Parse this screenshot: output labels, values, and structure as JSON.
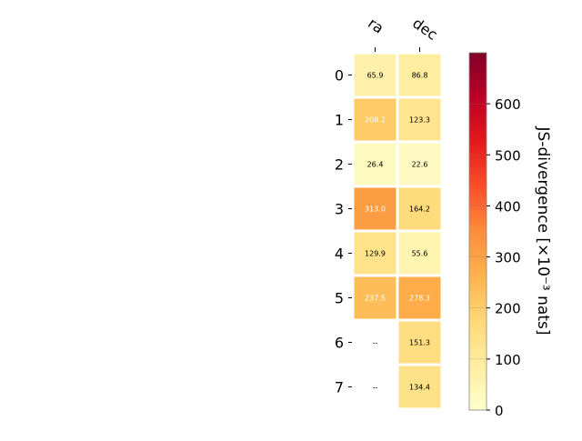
{
  "chart_data": {
    "type": "heatmap",
    "columns": [
      "ra",
      "dec"
    ],
    "rows": [
      "0",
      "1",
      "2",
      "3",
      "4",
      "5",
      "6",
      "7"
    ],
    "values": [
      [
        65.9,
        86.8
      ],
      [
        208.2,
        123.3
      ],
      [
        26.4,
        22.6
      ],
      [
        313.0,
        164.2
      ],
      [
        129.9,
        55.6
      ],
      [
        237.5,
        278.3
      ],
      [
        null,
        151.3
      ],
      [
        null,
        134.4
      ]
    ],
    "cell_labels": [
      [
        "65.9",
        "86.8"
      ],
      [
        "208.2",
        "123.3"
      ],
      [
        "26.4",
        "22.6"
      ],
      [
        "313.0",
        "164.2"
      ],
      [
        "129.9",
        "55.6"
      ],
      [
        "237.5",
        "278.3"
      ],
      [
        "--",
        "151.3"
      ],
      [
        "--",
        "134.4"
      ]
    ],
    "colorbar": {
      "label": "JS-divergence [×10⁻³ nats]",
      "range": [
        0,
        700
      ],
      "ticks": [
        0,
        100,
        200,
        300,
        400,
        500,
        600
      ],
      "colormap": "YlOrRd"
    }
  }
}
